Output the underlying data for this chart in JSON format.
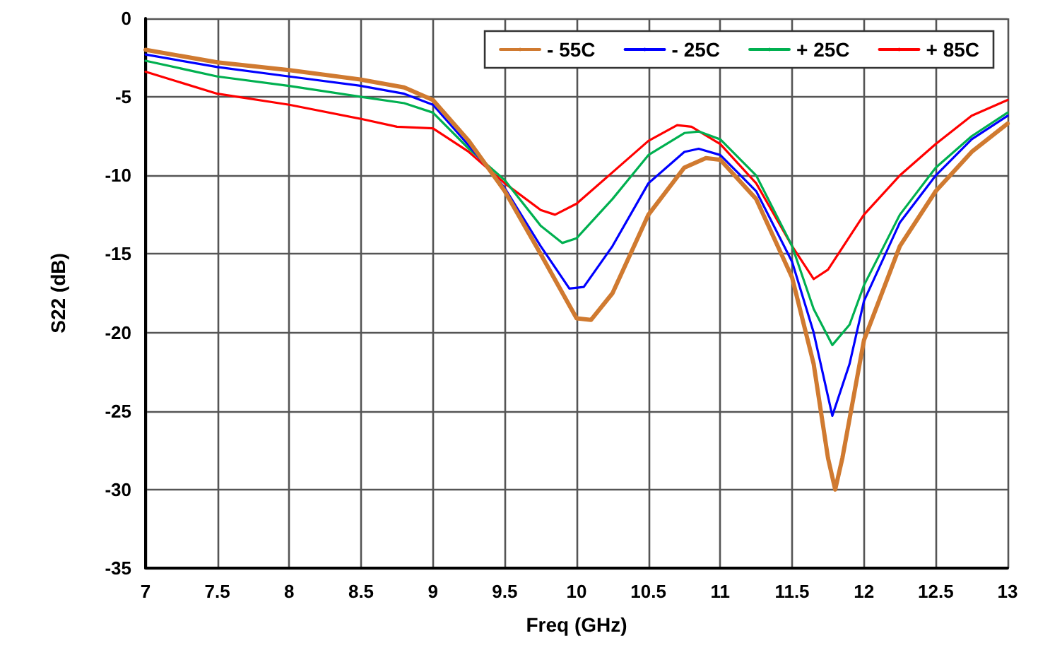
{
  "chart_data": {
    "type": "line",
    "xlabel": "Freq (GHz)",
    "ylabel": "S22 (dB)",
    "xlim": [
      7,
      13
    ],
    "ylim": [
      -35,
      0
    ],
    "xticks": [
      7,
      7.5,
      8,
      8.5,
      9,
      9.5,
      10,
      10.5,
      11,
      11.5,
      12,
      12.5,
      13
    ],
    "yticks": [
      -35,
      -30,
      -25,
      -20,
      -15,
      -10,
      -5,
      0
    ],
    "grid": true,
    "legend": "top right",
    "marker": "none",
    "line_style": "solid",
    "series": [
      {
        "name": "- 55C",
        "color": "#d07a30",
        "x": [
          7,
          7.5,
          8,
          8.5,
          8.8,
          9,
          9.25,
          9.5,
          9.75,
          10,
          10.1,
          10.25,
          10.5,
          10.75,
          10.9,
          11,
          11.25,
          11.5,
          11.65,
          11.75,
          11.8,
          11.85,
          11.95,
          12,
          12.25,
          12.5,
          12.75,
          13
        ],
        "values": [
          -2.0,
          -2.8,
          -3.3,
          -3.9,
          -4.4,
          -5.2,
          -7.8,
          -11,
          -15,
          -19.1,
          -19.2,
          -17.5,
          -12.5,
          -9.5,
          -8.9,
          -9.0,
          -11.5,
          -16.5,
          -22,
          -28,
          -30,
          -28,
          -23,
          -20.5,
          -14.5,
          -11,
          -8.5,
          -6.7
        ]
      },
      {
        "name": "- 25C",
        "color": "#0000ff",
        "x": [
          7,
          7.5,
          8,
          8.5,
          8.8,
          9,
          9.25,
          9.5,
          9.75,
          9.95,
          10.05,
          10.25,
          10.5,
          10.75,
          10.85,
          11,
          11.25,
          11.5,
          11.65,
          11.78,
          11.9,
          12,
          12.25,
          12.5,
          12.75,
          13
        ],
        "values": [
          -2.3,
          -3.1,
          -3.7,
          -4.3,
          -4.8,
          -5.5,
          -8.1,
          -10.8,
          -14.5,
          -17.2,
          -17.1,
          -14.5,
          -10.5,
          -8.5,
          -8.3,
          -8.7,
          -11,
          -15.5,
          -20,
          -25.3,
          -22,
          -18,
          -13,
          -10,
          -7.7,
          -6.2
        ]
      },
      {
        "name": "+ 25C",
        "color": "#00b050",
        "x": [
          7,
          7.5,
          8,
          8.5,
          8.8,
          9,
          9.25,
          9.5,
          9.75,
          9.9,
          10,
          10.25,
          10.5,
          10.75,
          10.85,
          11,
          11.25,
          11.5,
          11.65,
          11.78,
          11.9,
          12,
          12.25,
          12.5,
          12.75,
          13
        ],
        "values": [
          -2.7,
          -3.7,
          -4.3,
          -5.0,
          -5.4,
          -6.0,
          -8.3,
          -10.3,
          -13.2,
          -14.3,
          -14.0,
          -11.5,
          -8.7,
          -7.3,
          -7.2,
          -7.7,
          -10,
          -14.5,
          -18.5,
          -20.8,
          -19.5,
          -17,
          -12.5,
          -9.5,
          -7.5,
          -6.0
        ]
      },
      {
        "name": "+ 85C",
        "color": "#ff0000",
        "x": [
          7,
          7.5,
          8,
          8.5,
          8.75,
          9,
          9.25,
          9.5,
          9.75,
          9.85,
          10,
          10.25,
          10.5,
          10.7,
          10.8,
          11,
          11.25,
          11.5,
          11.65,
          11.75,
          12,
          12.25,
          12.5,
          12.75,
          13
        ],
        "values": [
          -3.4,
          -4.8,
          -5.5,
          -6.4,
          -6.9,
          -7.0,
          -8.5,
          -10.5,
          -12.2,
          -12.5,
          -11.8,
          -9.8,
          -7.8,
          -6.8,
          -6.9,
          -8.0,
          -10.5,
          -14.5,
          -16.6,
          -16,
          -12.5,
          -10,
          -8,
          -6.2,
          -5.2
        ]
      }
    ]
  }
}
